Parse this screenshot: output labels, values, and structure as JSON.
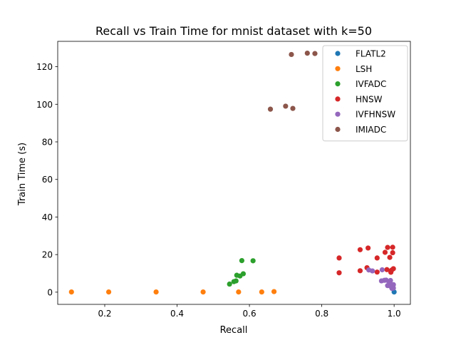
{
  "chart_data": {
    "type": "scatter",
    "title": "Recall vs Train Time for mnist dataset with k=50",
    "xlabel": "Recall",
    "ylabel": "Train Time (s)",
    "xlim": [
      0.07,
      1.045
    ],
    "ylim": [
      -6.5,
      133.5
    ],
    "xticks": [
      0.2,
      0.4,
      0.6,
      0.8,
      1.0
    ],
    "xtick_labels": [
      "0.2",
      "0.4",
      "0.6",
      "0.8",
      "1.0"
    ],
    "yticks": [
      0,
      20,
      40,
      60,
      80,
      100,
      120
    ],
    "ytick_labels": [
      "0",
      "20",
      "40",
      "60",
      "80",
      "100",
      "120"
    ],
    "grid": false,
    "legend_position": "top-right",
    "series": [
      {
        "name": "FLATL2",
        "color": "#1f77b4",
        "points": [
          [
            1.0,
            0.1
          ]
        ]
      },
      {
        "name": "LSH",
        "color": "#ff7f0e",
        "points": [
          [
            0.108,
            0.1
          ],
          [
            0.211,
            0.1
          ],
          [
            0.342,
            0.1
          ],
          [
            0.472,
            0.1
          ],
          [
            0.57,
            0.1
          ],
          [
            0.634,
            0.1
          ],
          [
            0.668,
            0.3
          ]
        ]
      },
      {
        "name": "IVFADC",
        "color": "#2ca02c",
        "points": [
          [
            0.545,
            4.3
          ],
          [
            0.557,
            5.6
          ],
          [
            0.563,
            6.0
          ],
          [
            0.565,
            9.0
          ],
          [
            0.574,
            8.6
          ],
          [
            0.583,
            9.8
          ],
          [
            0.579,
            16.8
          ],
          [
            0.61,
            16.7
          ]
        ]
      },
      {
        "name": "HNSW",
        "color": "#d62728",
        "points": [
          [
            0.848,
            10.3
          ],
          [
            0.848,
            18.2
          ],
          [
            0.906,
            11.4
          ],
          [
            0.906,
            22.6
          ],
          [
            0.925,
            13.0
          ],
          [
            0.928,
            23.5
          ],
          [
            0.953,
            18.2
          ],
          [
            0.953,
            10.7
          ],
          [
            0.975,
            21.2
          ],
          [
            0.98,
            12.0
          ],
          [
            0.982,
            23.8
          ],
          [
            0.988,
            18.5
          ],
          [
            0.991,
            10.6
          ],
          [
            0.993,
            11.7
          ],
          [
            0.996,
            23.9
          ],
          [
            0.996,
            21.0
          ],
          [
            0.998,
            12.5
          ]
        ]
      },
      {
        "name": "IVFHNSW",
        "color": "#9467bd",
        "points": [
          [
            0.93,
            11.8
          ],
          [
            0.94,
            11.3
          ],
          [
            0.965,
            6.0
          ],
          [
            0.967,
            11.9
          ],
          [
            0.973,
            6.3
          ],
          [
            0.978,
            6.4
          ],
          [
            0.982,
            3.5
          ],
          [
            0.986,
            5.6
          ],
          [
            0.99,
            6.2
          ],
          [
            0.99,
            3.2
          ],
          [
            0.994,
            2.0
          ],
          [
            0.996,
            3.8
          ],
          [
            0.998,
            2.2
          ],
          [
            0.998,
            4.0
          ]
        ]
      },
      {
        "name": "IMIADC",
        "color": "#8c564b",
        "points": [
          [
            0.658,
            97.4
          ],
          [
            0.7,
            99.0
          ],
          [
            0.716,
            126.5
          ],
          [
            0.72,
            97.8
          ],
          [
            0.76,
            127.2
          ],
          [
            0.781,
            127.0
          ]
        ]
      }
    ]
  }
}
